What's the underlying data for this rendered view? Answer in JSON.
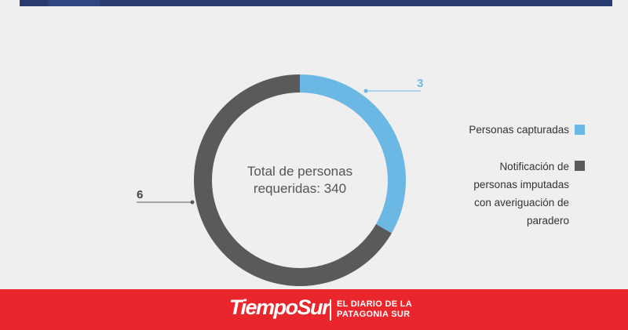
{
  "chart_data": {
    "type": "pie",
    "style": "donut",
    "center_label": [
      "Total de personas",
      "requeridas: 340"
    ],
    "series": [
      {
        "name": "Personas capturadas",
        "value": 3,
        "label": "3",
        "color": "#6ab8e3"
      },
      {
        "name": "Notificación de personas imputadas con averiguación de paradero",
        "value": 6,
        "label": "6",
        "color": "#5a5a5a"
      }
    ],
    "legend_position": "right"
  },
  "legend": {
    "item1": "Personas capturadas",
    "item2_lines": [
      "Notificación de",
      "personas imputadas",
      "con averiguación de",
      "paradero"
    ]
  },
  "footer": {
    "brand": "TiempoSur",
    "tagline_lines": [
      "EL DIARIO DE LA",
      "PATAGONIA SUR"
    ],
    "bg_color": "#e8262b"
  }
}
